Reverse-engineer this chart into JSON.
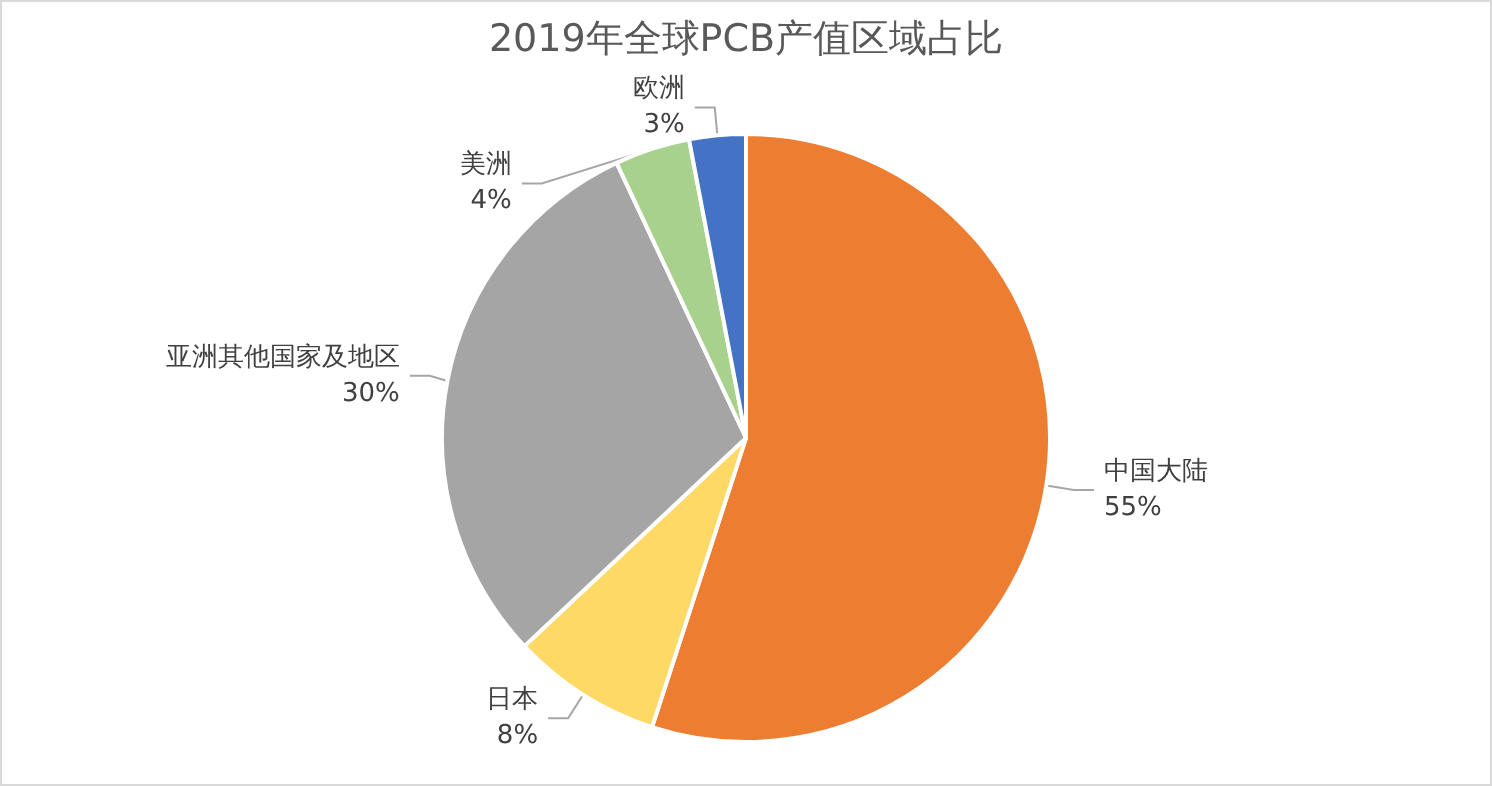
{
  "chart_data": {
    "type": "pie",
    "title": "2019年全球PCB产值区域占比",
    "categories": [
      "中国大陆",
      "日本",
      "亚洲其他国家及地区",
      "美洲",
      "欧洲"
    ],
    "values": [
      55,
      8,
      30,
      4,
      3
    ],
    "value_labels": [
      "55%",
      "8%",
      "30%",
      "4%",
      "3%"
    ],
    "colors": [
      "#ed7d31",
      "#ffd966",
      "#a5a5a5",
      "#a9d18e",
      "#4472c4"
    ],
    "legend": false
  }
}
